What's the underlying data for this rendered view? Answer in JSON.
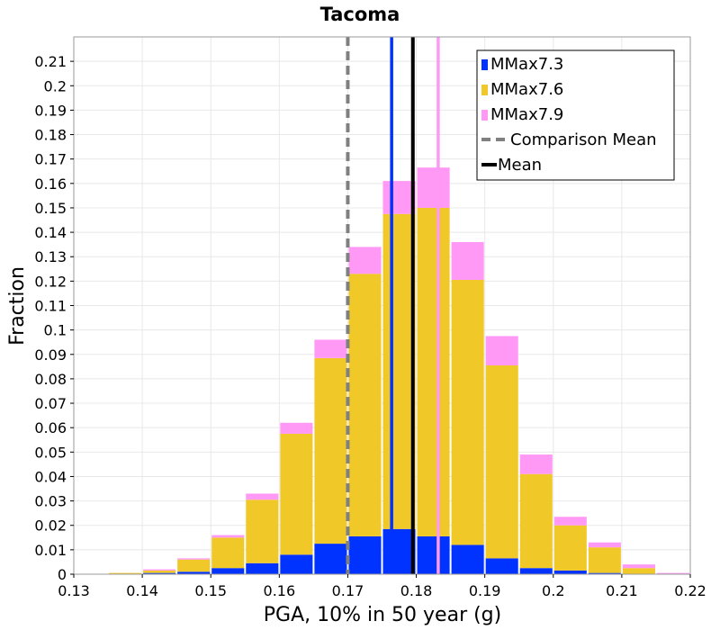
{
  "chart_data": {
    "type": "bar",
    "stacked": true,
    "title": "Tacoma",
    "xlabel": "PGA, 10% in 50 year (g)",
    "ylabel": "Fraction",
    "xlim": [
      0.13,
      0.22
    ],
    "ylim": [
      0,
      0.22
    ],
    "x_ticks": [
      "0.13",
      "0.14",
      "0.15",
      "0.16",
      "0.17",
      "0.18",
      "0.19",
      "0.2",
      "0.21",
      "0.22"
    ],
    "y_ticks": [
      "0",
      "0.01",
      "0.02",
      "0.03",
      "0.04",
      "0.05",
      "0.06",
      "0.07",
      "0.08",
      "0.09",
      "0.1",
      "0.11",
      "0.12",
      "0.13",
      "0.14",
      "0.15",
      "0.16",
      "0.17",
      "0.18",
      "0.19",
      "0.2",
      "0.21"
    ],
    "grid": true,
    "legend_position": "top-right",
    "bin_width": 0.005,
    "bin_centers": [
      0.1375,
      0.1425,
      0.1475,
      0.1525,
      0.1575,
      0.1625,
      0.1675,
      0.1725,
      0.1775,
      0.1825,
      0.1875,
      0.1925,
      0.1975,
      0.2025,
      0.2075,
      0.2125,
      0.2175
    ],
    "series": [
      {
        "name": "MMax7.3",
        "color": "#0033ff",
        "values": [
          0.0,
          0.0005,
          0.001,
          0.0025,
          0.0045,
          0.008,
          0.0125,
          0.0155,
          0.0185,
          0.0155,
          0.012,
          0.0065,
          0.0025,
          0.0015,
          0.0005,
          0.0,
          0.0
        ]
      },
      {
        "name": "MMax7.6",
        "color": "#f0c828",
        "values": [
          0.0005,
          0.001,
          0.005,
          0.0125,
          0.026,
          0.0495,
          0.076,
          0.1075,
          0.129,
          0.1345,
          0.1085,
          0.079,
          0.0385,
          0.0185,
          0.0105,
          0.0025,
          0.0
        ]
      },
      {
        "name": "MMax7.9",
        "color": "#ff99f5",
        "values": [
          0.0,
          0.0005,
          0.0005,
          0.001,
          0.0025,
          0.0045,
          0.0075,
          0.011,
          0.0135,
          0.0165,
          0.0155,
          0.012,
          0.008,
          0.0035,
          0.002,
          0.0015,
          0.0005
        ]
      }
    ],
    "lines": [
      {
        "name": "Comparison Mean",
        "x": 0.17,
        "style": "dashed",
        "color": "#808080"
      },
      {
        "name": "Mean",
        "x": 0.1795,
        "style": "solid",
        "color": "#000000"
      },
      {
        "name": "MMax7.3 mean",
        "x": 0.1764,
        "style": "solid",
        "color": "#0033ff"
      },
      {
        "name": "MMax7.9 mean",
        "x": 0.1832,
        "style": "solid",
        "color": "#ff99f5"
      }
    ],
    "legend": [
      "MMax7.3",
      "MMax7.6",
      "MMax7.9",
      "Comparison Mean",
      "Mean"
    ]
  }
}
